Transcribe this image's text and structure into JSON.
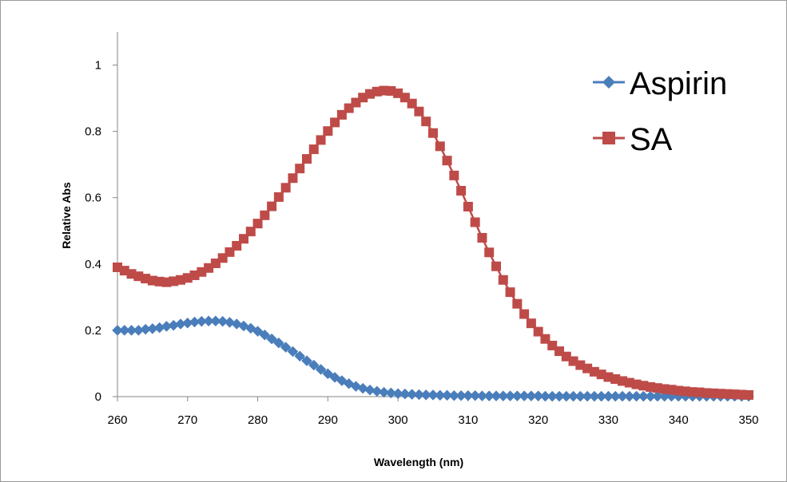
{
  "chart_data": {
    "type": "line",
    "title": "",
    "xlabel": "Wavelength (nm)",
    "ylabel": "Relative Abs",
    "xlim": [
      260,
      350
    ],
    "ylim": [
      0,
      1.1
    ],
    "x_ticks": [
      "260",
      "270",
      "280",
      "290",
      "300",
      "310",
      "320",
      "330",
      "340",
      "350"
    ],
    "y_ticks": [
      "0",
      "0.2",
      "0.4",
      "0.6",
      "0.8",
      "1"
    ],
    "grid": false,
    "legend_position": "top-right",
    "series": [
      {
        "name": "Aspirin",
        "color": "#4a7ebb",
        "marker": "diamond",
        "x": [
          260,
          261,
          262,
          263,
          264,
          265,
          266,
          267,
          268,
          269,
          270,
          271,
          272,
          273,
          274,
          275,
          276,
          277,
          278,
          279,
          280,
          281,
          282,
          283,
          284,
          285,
          286,
          287,
          288,
          289,
          290,
          291,
          292,
          293,
          294,
          295,
          296,
          297,
          298,
          299,
          300,
          301,
          302,
          303,
          304,
          305,
          306,
          307,
          308,
          309,
          310,
          311,
          312,
          313,
          314,
          315,
          316,
          317,
          318,
          319,
          320,
          321,
          322,
          323,
          324,
          325,
          326,
          327,
          328,
          329,
          330,
          331,
          332,
          333,
          334,
          335,
          336,
          337,
          338,
          339,
          340,
          341,
          342,
          343,
          344,
          345,
          346,
          347,
          348,
          349,
          350
        ],
        "y": [
          0.2,
          0.2,
          0.2,
          0.2,
          0.203,
          0.205,
          0.208,
          0.212,
          0.215,
          0.219,
          0.222,
          0.225,
          0.227,
          0.228,
          0.228,
          0.227,
          0.224,
          0.219,
          0.213,
          0.206,
          0.197,
          0.186,
          0.174,
          0.162,
          0.149,
          0.136,
          0.122,
          0.108,
          0.095,
          0.082,
          0.069,
          0.058,
          0.048,
          0.039,
          0.031,
          0.025,
          0.02,
          0.016,
          0.013,
          0.011,
          0.009,
          0.008,
          0.007,
          0.006,
          0.005,
          0.005,
          0.004,
          0.004,
          0.003,
          0.003,
          0.003,
          0.003,
          0.002,
          0.002,
          0.002,
          0.002,
          0.002,
          0.002,
          0.002,
          0.002,
          0.002,
          0.001,
          0.001,
          0.001,
          0.001,
          0.001,
          0.001,
          0.001,
          0.001,
          0.001,
          0.001,
          0.001,
          0.001,
          0.001,
          0.001,
          0.001,
          0.001,
          0.001,
          0.001,
          0.001,
          0.001,
          0.001,
          0.001,
          0.001,
          0.001,
          0.001,
          0.001,
          0.001,
          0.001,
          0.001,
          0.001
        ]
      },
      {
        "name": "SA",
        "color": "#be4b48",
        "marker": "square",
        "x": [
          260,
          261,
          262,
          263,
          264,
          265,
          266,
          267,
          268,
          269,
          270,
          271,
          272,
          273,
          274,
          275,
          276,
          277,
          278,
          279,
          280,
          281,
          282,
          283,
          284,
          285,
          286,
          287,
          288,
          289,
          290,
          291,
          292,
          293,
          294,
          295,
          296,
          297,
          298,
          299,
          300,
          301,
          302,
          303,
          304,
          305,
          306,
          307,
          308,
          309,
          310,
          311,
          312,
          313,
          314,
          315,
          316,
          317,
          318,
          319,
          320,
          321,
          322,
          323,
          324,
          325,
          326,
          327,
          328,
          329,
          330,
          331,
          332,
          333,
          334,
          335,
          336,
          337,
          338,
          339,
          340,
          341,
          342,
          343,
          344,
          345,
          346,
          347,
          348,
          349,
          350
        ],
        "y": [
          0.39,
          0.38,
          0.37,
          0.363,
          0.356,
          0.35,
          0.347,
          0.345,
          0.348,
          0.352,
          0.358,
          0.366,
          0.376,
          0.388,
          0.402,
          0.418,
          0.436,
          0.455,
          0.476,
          0.498,
          0.522,
          0.547,
          0.574,
          0.602,
          0.63,
          0.659,
          0.688,
          0.717,
          0.746,
          0.774,
          0.801,
          0.827,
          0.85,
          0.87,
          0.887,
          0.902,
          0.913,
          0.92,
          0.923,
          0.922,
          0.915,
          0.902,
          0.884,
          0.86,
          0.83,
          0.795,
          0.755,
          0.712,
          0.667,
          0.621,
          0.573,
          0.526,
          0.479,
          0.435,
          0.393,
          0.352,
          0.315,
          0.28,
          0.249,
          0.221,
          0.196,
          0.174,
          0.154,
          0.137,
          0.121,
          0.107,
          0.095,
          0.085,
          0.075,
          0.067,
          0.059,
          0.053,
          0.047,
          0.042,
          0.037,
          0.033,
          0.029,
          0.026,
          0.023,
          0.021,
          0.018,
          0.016,
          0.014,
          0.013,
          0.011,
          0.01,
          0.009,
          0.008,
          0.007,
          0.006,
          0.005
        ]
      }
    ]
  }
}
